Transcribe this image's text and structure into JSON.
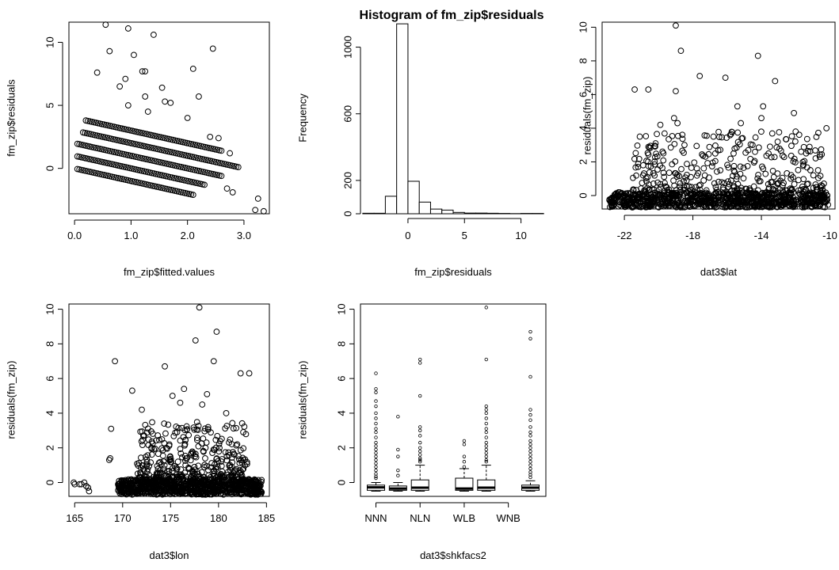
{
  "chart_data": [
    {
      "id": "p1",
      "type": "scatter",
      "title": "",
      "xlabel": "fm_zip$fitted.values",
      "ylabel": "fm_zip$residuals",
      "xlim": [
        -0.1,
        3.45
      ],
      "ylim": [
        -3.6,
        11.6
      ],
      "xticks": [
        0.0,
        1.0,
        2.0,
        3.0
      ],
      "xtick_labels": [
        "0.0",
        "1.0",
        "2.0",
        "3.0"
      ],
      "yticks": [
        0,
        5,
        10
      ],
      "ytick_labels": [
        "0",
        "5",
        "10"
      ],
      "bands": [
        {
          "x": [
            0.05,
            2.1
          ],
          "y0": 0,
          "slope": -1
        },
        {
          "x": [
            0.05,
            2.3
          ],
          "y0": 1,
          "slope": -1
        },
        {
          "x": [
            0.05,
            2.6
          ],
          "y0": 2,
          "slope": -1
        },
        {
          "x": [
            0.15,
            2.9
          ],
          "y0": 3,
          "slope": -1
        },
        {
          "x": [
            0.2,
            2.6
          ],
          "y0": 4,
          "slope": -1
        }
      ],
      "points": [
        [
          0.55,
          11.4
        ],
        [
          0.95,
          11.1
        ],
        [
          1.4,
          10.6
        ],
        [
          0.62,
          9.3
        ],
        [
          1.05,
          9.0
        ],
        [
          2.45,
          9.5
        ],
        [
          0.4,
          7.6
        ],
        [
          0.9,
          7.1
        ],
        [
          1.2,
          7.7
        ],
        [
          1.25,
          7.7
        ],
        [
          2.1,
          7.9
        ],
        [
          0.8,
          6.5
        ],
        [
          1.55,
          6.4
        ],
        [
          1.25,
          5.7
        ],
        [
          2.2,
          5.7
        ],
        [
          0.95,
          5.0
        ],
        [
          1.6,
          5.3
        ],
        [
          1.7,
          5.2
        ],
        [
          1.3,
          4.5
        ],
        [
          2.0,
          4.0
        ],
        [
          2.4,
          2.5
        ],
        [
          2.55,
          2.4
        ],
        [
          2.75,
          1.2
        ],
        [
          2.7,
          -1.6
        ],
        [
          2.8,
          -1.9
        ],
        [
          3.25,
          -2.4
        ],
        [
          3.35,
          -3.4
        ],
        [
          3.2,
          -3.3
        ]
      ]
    },
    {
      "id": "p2",
      "type": "bar",
      "title": "Histogram of fm_zip$residuals",
      "xlabel": "fm_zip$residuals",
      "ylabel": "Frequency",
      "xlim": [
        -4.2,
        12.2
      ],
      "ylim": [
        0,
        1150
      ],
      "xticks": [
        0,
        5,
        10
      ],
      "xtick_labels": [
        "0",
        "5",
        "10"
      ],
      "yticks": [
        0,
        200,
        600,
        1000
      ],
      "ytick_labels": [
        "0",
        "200",
        "600",
        "1000"
      ],
      "bin_edges": [
        -4,
        -3,
        -2,
        -1,
        0,
        1,
        2,
        3,
        4,
        5,
        6,
        7,
        8,
        9,
        10,
        11,
        12
      ],
      "values": [
        3,
        3,
        105,
        1140,
        195,
        70,
        28,
        22,
        8,
        4,
        4,
        3,
        2,
        1,
        2,
        2
      ]
    },
    {
      "id": "p3",
      "type": "scatter",
      "title": "",
      "xlabel": "dat3$lat",
      "ylabel": "residuals(fm_zip)",
      "xlim": [
        -23.3,
        -9.7
      ],
      "ylim": [
        -0.8,
        10.3
      ],
      "xticks": [
        -22,
        -18,
        -14,
        -10
      ],
      "xtick_labels": [
        "-22",
        "-18",
        "-14",
        "-10"
      ],
      "yticks": [
        0,
        2,
        4,
        6,
        8,
        10
      ],
      "ytick_labels": [
        "0",
        "2",
        "4",
        "6",
        "8",
        "10"
      ],
      "cloud": {
        "x": [
          -22.9,
          -10.1
        ],
        "base_y": [
          -0.7,
          0.2
        ],
        "upper_x": [
          -21.5,
          -10.3
        ],
        "upper_y": [
          0.3,
          3.8
        ]
      },
      "points": [
        [
          -19.0,
          10.1
        ],
        [
          -18.7,
          8.6
        ],
        [
          -14.2,
          8.3
        ],
        [
          -17.6,
          7.1
        ],
        [
          -16.1,
          7.0
        ],
        [
          -13.2,
          6.8
        ],
        [
          -21.4,
          6.3
        ],
        [
          -20.6,
          6.3
        ],
        [
          -19.0,
          6.2
        ],
        [
          -13.9,
          5.3
        ],
        [
          -15.4,
          5.3
        ],
        [
          -12.1,
          4.9
        ],
        [
          -19.1,
          4.6
        ],
        [
          -18.9,
          4.3
        ],
        [
          -10.2,
          4.0
        ],
        [
          -15.2,
          4.3
        ],
        [
          -14.0,
          4.6
        ],
        [
          -12.0,
          3.8
        ],
        [
          -16.8,
          3.5
        ],
        [
          -21.1,
          3.5
        ],
        [
          -19.9,
          4.2
        ],
        [
          -20.9,
          1.8
        ],
        [
          -22.0,
          -0.3
        ],
        [
          -22.6,
          -0.4
        ]
      ]
    },
    {
      "id": "p4",
      "type": "scatter",
      "title": "",
      "xlabel": "dat3$lon",
      "ylabel": "residuals(fm_zip)",
      "xlim": [
        164.4,
        185.3
      ],
      "ylim": [
        -0.8,
        10.3
      ],
      "xticks": [
        165,
        170,
        175,
        180,
        185
      ],
      "xtick_labels": [
        "165",
        "170",
        "175",
        "180",
        "185"
      ],
      "yticks": [
        0,
        2,
        4,
        6,
        8,
        10
      ],
      "ytick_labels": [
        "0",
        "2",
        "4",
        "6",
        "8",
        "10"
      ],
      "cloud": {
        "x": [
          169.5,
          184.5
        ],
        "base_y": [
          -0.7,
          0.2
        ],
        "upper_x": [
          171.5,
          183.0
        ],
        "upper_y": [
          0.3,
          3.5
        ]
      },
      "points": [
        [
          178.0,
          10.1
        ],
        [
          179.8,
          8.7
        ],
        [
          177.6,
          8.2
        ],
        [
          169.2,
          7.0
        ],
        [
          179.5,
          7.0
        ],
        [
          174.4,
          6.7
        ],
        [
          182.3,
          6.3
        ],
        [
          183.2,
          6.3
        ],
        [
          176.4,
          5.4
        ],
        [
          171.0,
          5.3
        ],
        [
          175.2,
          5.0
        ],
        [
          178.8,
          5.1
        ],
        [
          178.3,
          4.5
        ],
        [
          180.8,
          4.0
        ],
        [
          172.0,
          4.2
        ],
        [
          176.0,
          4.6
        ],
        [
          168.8,
          3.1
        ],
        [
          168.7,
          1.4
        ],
        [
          168.6,
          1.3
        ],
        [
          165.0,
          -0.1
        ],
        [
          165.5,
          -0.1
        ],
        [
          165.7,
          -0.1
        ],
        [
          166.0,
          0.0
        ],
        [
          166.2,
          -0.2
        ],
        [
          166.4,
          -0.3
        ],
        [
          166.5,
          -0.5
        ],
        [
          164.9,
          0.0
        ],
        [
          184.0,
          -0.4
        ],
        [
          184.3,
          -0.5
        ]
      ]
    },
    {
      "id": "p5",
      "type": "box",
      "title": "",
      "xlabel": "dat3$shkfacs2",
      "ylabel": "residuals(fm_zip)",
      "ylim": [
        -0.8,
        10.3
      ],
      "yticks": [
        0,
        2,
        4,
        6,
        8,
        10
      ],
      "ytick_labels": [
        "0",
        "2",
        "4",
        "6",
        "8",
        "10"
      ],
      "categories": [
        "NNN",
        "",
        "NLN",
        "",
        "WLB",
        "",
        "WNB",
        ""
      ],
      "xtick_labels": [
        "NNN",
        "NLN",
        "WLB",
        "WNB"
      ],
      "xtick_positions": [
        1,
        3,
        5,
        7
      ],
      "boxes": [
        {
          "pos": 1,
          "q1": -0.45,
          "median": -0.28,
          "q3": -0.15,
          "wlo": -0.5,
          "whi": 0.0,
          "outliers": [
            6.3,
            5.4,
            5.2,
            4.7,
            4.4,
            4.0,
            3.7,
            3.4,
            3.1,
            2.9,
            2.6,
            2.3,
            2.1,
            1.9,
            1.7,
            1.5,
            1.3,
            1.1,
            0.9,
            0.7,
            0.5,
            0.35,
            0.25
          ]
        },
        {
          "pos": 2,
          "q1": -0.45,
          "median": -0.35,
          "q3": -0.2,
          "wlo": -0.5,
          "whi": 0.0,
          "outliers": [
            3.8,
            1.9,
            1.5,
            0.7,
            0.4
          ]
        },
        {
          "pos": 3,
          "q1": -0.45,
          "median": -0.3,
          "q3": 0.15,
          "wlo": -0.5,
          "whi": 1.0,
          "outliers": [
            7.1,
            6.9,
            5.0,
            3.2,
            3.0,
            2.7,
            2.3,
            2.0,
            1.8,
            1.6,
            1.4,
            1.3,
            1.2
          ]
        },
        {
          "pos": 5,
          "q1": -0.45,
          "median": -0.35,
          "q3": 0.25,
          "wlo": -0.5,
          "whi": 0.8,
          "outliers": [
            2.4,
            2.2,
            1.5,
            1.2,
            0.9
          ]
        },
        {
          "pos": 6,
          "q1": -0.45,
          "median": -0.3,
          "q3": 0.15,
          "wlo": -0.5,
          "whi": 1.0,
          "outliers": [
            10.1,
            7.1,
            4.4,
            4.2,
            4.0,
            3.7,
            3.4,
            3.1,
            2.9,
            2.6,
            2.3,
            2.1,
            1.9,
            1.7,
            1.5,
            1.3,
            1.2
          ]
        },
        {
          "pos": 8,
          "q1": -0.45,
          "median": -0.3,
          "q3": -0.15,
          "wlo": -0.5,
          "whi": 0.1,
          "outliers": [
            8.7,
            8.3,
            6.1,
            4.2,
            3.9,
            3.6,
            3.2,
            2.9,
            2.7,
            2.4,
            2.2,
            2.0,
            1.8,
            1.6,
            1.4,
            1.2,
            1.0,
            0.8,
            0.6,
            0.45,
            0.3
          ]
        }
      ],
      "xlim": [
        0.3,
        8.7
      ]
    }
  ]
}
